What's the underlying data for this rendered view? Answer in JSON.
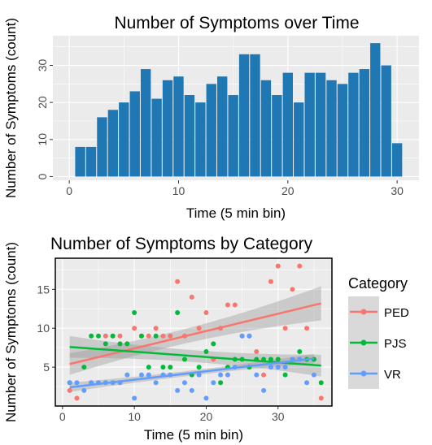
{
  "chart_data": [
    {
      "type": "bar",
      "title": "Number of Symptoms over Time",
      "xlabel": "Time (5 min bin)",
      "ylabel": "Number of Symptoms (count)",
      "xlim": [
        -1.5,
        32
      ],
      "ylim": [
        -1,
        38
      ],
      "x_ticks": [
        0,
        10,
        20,
        30
      ],
      "y_ticks": [
        0,
        10,
        20,
        30
      ],
      "grid": true,
      "bar_color": "#1f77b4",
      "x": [
        1,
        2,
        3,
        4,
        5,
        6,
        7,
        8,
        9,
        10,
        11,
        12,
        13,
        14,
        15,
        16,
        17,
        18,
        19,
        20,
        21,
        22,
        23,
        24,
        25,
        26,
        27,
        28,
        29,
        30
      ],
      "values": [
        8,
        8,
        16,
        18,
        20,
        23,
        29,
        21,
        26,
        27,
        22,
        20,
        25,
        27,
        22,
        33,
        33,
        26,
        22,
        28,
        20,
        28,
        28,
        26,
        25,
        28,
        29,
        36,
        30,
        9
      ]
    },
    {
      "type": "scatter",
      "title": "Number of Symptoms by Category",
      "xlabel": "Time (5 min bin)",
      "ylabel": "Number of Symptoms (count)",
      "xlim": [
        -1,
        37.5
      ],
      "ylim": [
        0,
        19
      ],
      "x_ticks": [
        0,
        10,
        20,
        30
      ],
      "y_ticks": [
        5,
        10,
        15
      ],
      "grid": true,
      "trend_lines": "linear fit with confidence band",
      "legend": {
        "title": "Category",
        "placement": "right"
      },
      "series": [
        {
          "name": "PED",
          "color": "#f8766d",
          "x": [
            1,
            2,
            4,
            6,
            7,
            8,
            9,
            10,
            11,
            12,
            13,
            14,
            15,
            16,
            17,
            18,
            19,
            20,
            21,
            22,
            23,
            24,
            25,
            26,
            27,
            28,
            29,
            30,
            31,
            32,
            33,
            34,
            35,
            36
          ],
          "y": [
            2,
            1,
            3,
            9,
            9,
            9,
            8,
            10,
            9,
            9,
            10,
            9,
            9,
            16,
            9,
            14,
            10,
            12,
            6,
            10,
            13,
            13,
            9,
            9,
            7,
            4,
            16,
            18,
            10,
            15,
            18,
            10,
            6,
            1
          ],
          "trend": [
            [
              1,
              5.4
            ],
            [
              36,
              13.2
            ]
          ],
          "band_halfwidth": [
            1.4,
            0.6,
            2.2
          ]
        },
        {
          "name": "PJS",
          "color": "#00ba38",
          "x": [
            1,
            3,
            4,
            5,
            6,
            7,
            8,
            9,
            10,
            11,
            12,
            13,
            14,
            15,
            16,
            17,
            18,
            19,
            20,
            21,
            22,
            23,
            24,
            25,
            26,
            27,
            28,
            29,
            30,
            31,
            32,
            33,
            34,
            35,
            36
          ],
          "y": [
            3,
            5,
            9,
            9,
            8,
            9,
            8,
            8,
            12,
            9,
            5,
            9,
            5,
            5,
            12,
            6,
            4,
            5,
            7,
            8,
            3,
            5,
            6,
            6,
            5,
            6,
            6,
            6,
            6,
            4,
            6,
            7,
            6,
            6,
            3
          ],
          "trend": [
            [
              1,
              7.6
            ],
            [
              36,
              5.2
            ]
          ],
          "band_halfwidth": [
            1.4,
            0.6,
            1.4
          ]
        },
        {
          "name": "VR",
          "color": "#619cff",
          "x": [
            1,
            2,
            3,
            4,
            5,
            6,
            7,
            8,
            9,
            10,
            11,
            12,
            13,
            14,
            15,
            16,
            17,
            18,
            19,
            20,
            21,
            22,
            23,
            24,
            25,
            26,
            27,
            28,
            29,
            30,
            31,
            32,
            33,
            34,
            35
          ],
          "y": [
            3,
            3,
            2,
            3,
            3,
            3,
            3,
            3,
            4,
            1,
            4,
            4,
            3,
            4,
            4,
            2,
            3,
            2,
            4,
            1,
            3,
            4,
            4,
            5,
            9,
            9,
            4,
            2,
            5,
            5,
            5,
            6,
            6,
            3,
            4
          ],
          "trend": [
            [
              1,
              2.4
            ],
            [
              35,
              6.1
            ]
          ],
          "band_halfwidth": [
            0.6,
            0.3,
            0.6
          ]
        }
      ]
    }
  ]
}
